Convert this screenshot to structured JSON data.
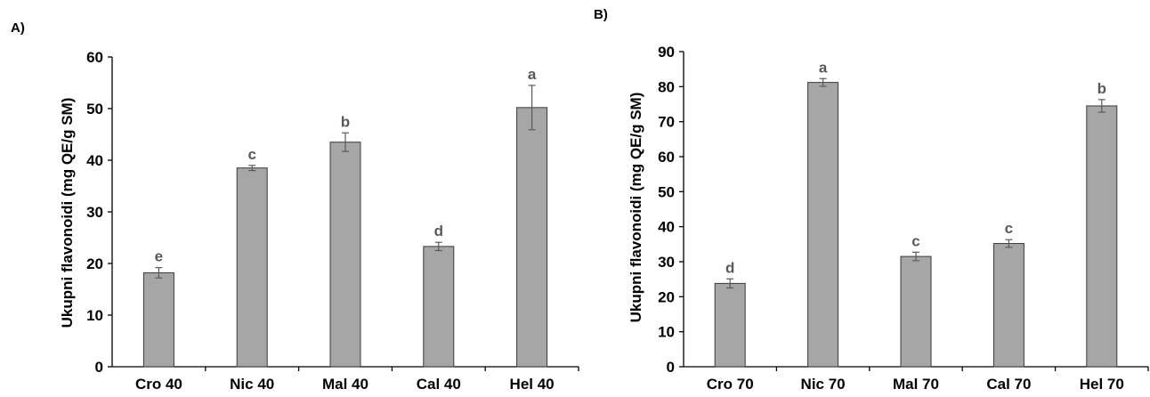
{
  "chart_data": [
    {
      "panel_label": "A)",
      "type": "bar",
      "ylabel": "Ukupni flavonoidi (mg QE/g SM)",
      "xlabel": "",
      "ylim": [
        0,
        60
      ],
      "yticks": [
        "0",
        "10",
        "20",
        "30",
        "40",
        "50",
        "60"
      ],
      "categories": [
        "Cro 40",
        "Nic 40",
        "Mal 40",
        "Cal 40",
        "Hel 40"
      ],
      "values": [
        18.2,
        38.5,
        43.5,
        23.3,
        50.2
      ],
      "errors": [
        1.0,
        0.5,
        1.8,
        0.8,
        4.3
      ],
      "significance": [
        "e",
        "c",
        "b",
        "d",
        "a"
      ],
      "grid": false,
      "bar_color": "#a6a6a6"
    },
    {
      "panel_label": "B)",
      "type": "bar",
      "ylabel": "Ukupni flavonoidi (mg QE/g SM)",
      "xlabel": "",
      "ylim": [
        0,
        90
      ],
      "yticks": [
        "0",
        "10",
        "20",
        "30",
        "40",
        "50",
        "60",
        "70",
        "80",
        "90"
      ],
      "categories": [
        "Cro 70",
        "Nic 70",
        "Mal 70",
        "Cal 70",
        "Hel 70"
      ],
      "values": [
        23.8,
        81.2,
        31.5,
        35.2,
        74.5
      ],
      "errors": [
        1.3,
        1.1,
        1.2,
        1.1,
        1.8
      ],
      "significance": [
        "d",
        "a",
        "c",
        "c",
        "b"
      ],
      "grid": false,
      "bar_color": "#a6a6a6"
    }
  ]
}
